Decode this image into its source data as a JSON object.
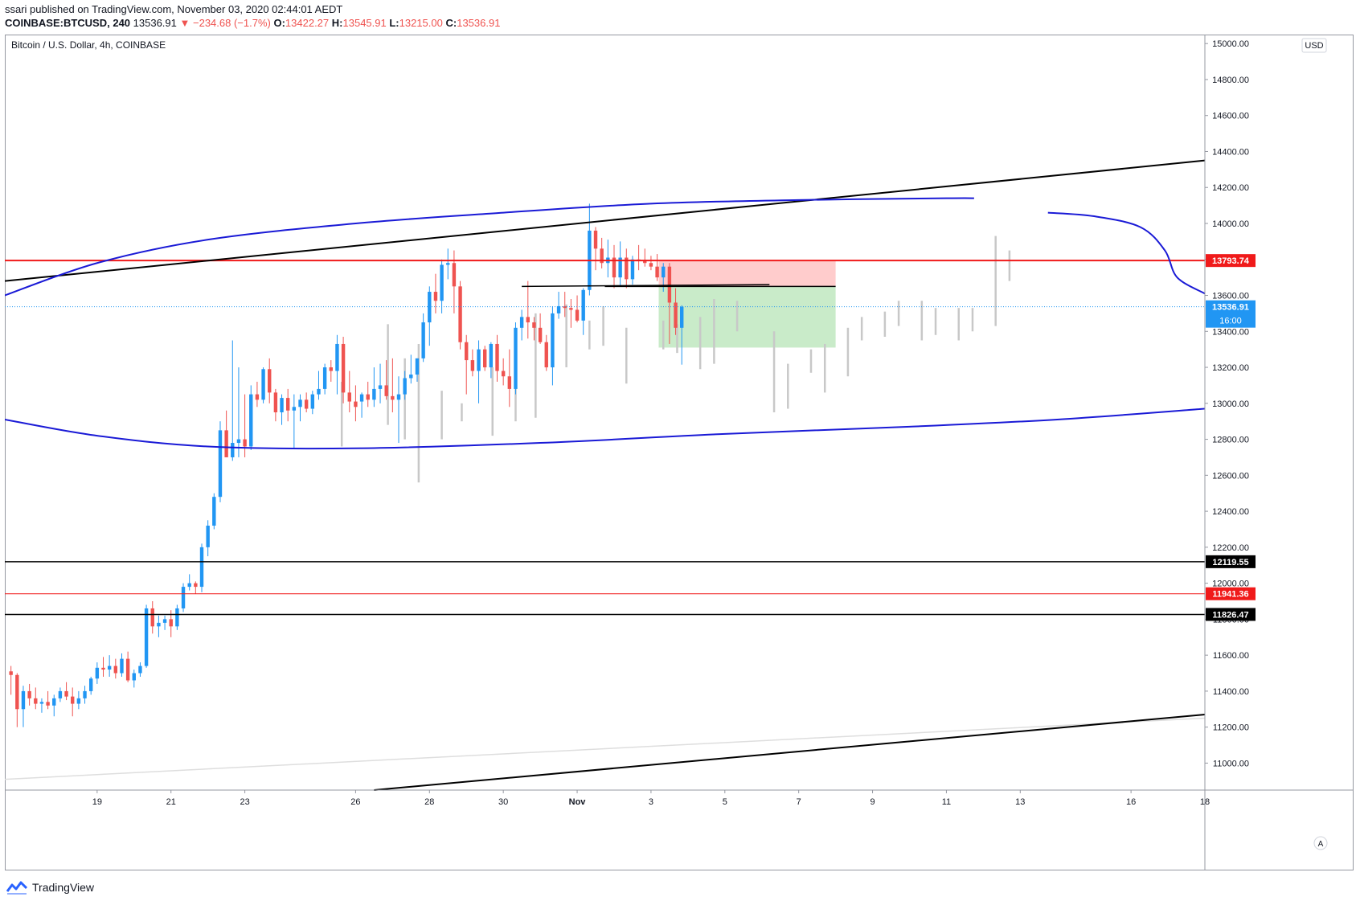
{
  "header": {
    "line1": "ssari published on TradingView.com, November 03, 2020 02:44:01 AEDT",
    "symbol": "COINBASE:BTCUSD, 240",
    "last": "13536.91",
    "change": "▼ −234.68 (−1.7%)",
    "o_label": "O:",
    "o_value": "13422.27",
    "h_label": "H:",
    "h_value": "13545.91",
    "l_label": "L:",
    "l_value": "13215.00",
    "c_label": "C:",
    "c_value": "13536.91"
  },
  "footer": {
    "brand": "TradingView"
  },
  "colors": {
    "up": "#2196f3",
    "down": "#ef5350",
    "projection": "#c8c8c8",
    "curve": "#1a1ad6",
    "trend": "#000000",
    "resistance": "#f01a1a",
    "stop_zone": "#ffcccc",
    "target_zone": "#c9ebc9"
  },
  "chart_data": {
    "type": "candlestick",
    "title": "Bitcoin / U.S. Dollar, 4h, COINBASE",
    "currency": "USD",
    "ylim": [
      10850,
      15050
    ],
    "y_ticks": [
      11000,
      11200,
      11400,
      11600,
      11800,
      12000,
      12200,
      12400,
      12600,
      12800,
      13000,
      13200,
      13400,
      13600,
      13800,
      14000,
      14200,
      14400,
      14600,
      14800,
      15000
    ],
    "x_range": [
      "2020-10-16T12:00",
      "2020-11-18T00:00"
    ],
    "x_ticks": [
      {
        "date": "2020-10-19",
        "label": "19"
      },
      {
        "date": "2020-10-21",
        "label": "21"
      },
      {
        "date": "2020-10-23",
        "label": "23"
      },
      {
        "date": "2020-10-26",
        "label": "26"
      },
      {
        "date": "2020-10-28",
        "label": "28"
      },
      {
        "date": "2020-10-30",
        "label": "30"
      },
      {
        "date": "2020-11-01",
        "label": "Nov"
      },
      {
        "date": "2020-11-03",
        "label": "3"
      },
      {
        "date": "2020-11-05",
        "label": "5"
      },
      {
        "date": "2020-11-07",
        "label": "7"
      },
      {
        "date": "2020-11-09",
        "label": "9"
      },
      {
        "date": "2020-11-11",
        "label": "11"
      },
      {
        "date": "2020-11-13",
        "label": "13"
      },
      {
        "date": "2020-11-16",
        "label": "16"
      },
      {
        "date": "2020-11-18",
        "label": "18"
      }
    ],
    "candles_start": "2020-10-16T16:00",
    "candle_interval": "4h",
    "candles": [
      [
        11510,
        11540,
        11380,
        11490
      ],
      [
        11490,
        11500,
        11200,
        11300
      ],
      [
        11300,
        11430,
        11200,
        11400
      ],
      [
        11400,
        11440,
        11320,
        11360
      ],
      [
        11360,
        11420,
        11300,
        11330
      ],
      [
        11330,
        11360,
        11280,
        11340
      ],
      [
        11340,
        11400,
        11300,
        11320
      ],
      [
        11320,
        11380,
        11260,
        11360
      ],
      [
        11360,
        11420,
        11340,
        11400
      ],
      [
        11400,
        11450,
        11350,
        11370
      ],
      [
        11370,
        11420,
        11260,
        11330
      ],
      [
        11330,
        11400,
        11300,
        11360
      ],
      [
        11360,
        11430,
        11330,
        11400
      ],
      [
        11400,
        11480,
        11380,
        11470
      ],
      [
        11470,
        11560,
        11440,
        11530
      ],
      [
        11530,
        11590,
        11480,
        11520
      ],
      [
        11520,
        11600,
        11480,
        11540
      ],
      [
        11540,
        11580,
        11470,
        11500
      ],
      [
        11500,
        11610,
        11480,
        11580
      ],
      [
        11580,
        11620,
        11450,
        11460
      ],
      [
        11460,
        11520,
        11420,
        11500
      ],
      [
        11500,
        11560,
        11480,
        11540
      ],
      [
        11540,
        11880,
        11530,
        11860
      ],
      [
        11860,
        11900,
        11720,
        11760
      ],
      [
        11760,
        11820,
        11700,
        11780
      ],
      [
        11780,
        11820,
        11740,
        11800
      ],
      [
        11800,
        11850,
        11700,
        11760
      ],
      [
        11760,
        11880,
        11740,
        11860
      ],
      [
        11860,
        12000,
        11840,
        11980
      ],
      [
        11980,
        12050,
        11960,
        12000
      ],
      [
        12000,
        12010,
        11940,
        11980
      ],
      [
        11980,
        12220,
        11950,
        12200
      ],
      [
        12200,
        12350,
        12150,
        12320
      ],
      [
        12320,
        12500,
        12300,
        12480
      ],
      [
        12480,
        12900,
        12450,
        12850
      ],
      [
        12850,
        12960,
        12700,
        12700
      ],
      [
        12700,
        13350,
        12680,
        12780
      ],
      [
        12780,
        13200,
        12700,
        12800
      ],
      [
        12800,
        13050,
        12700,
        12760
      ],
      [
        12760,
        13100,
        12740,
        13050
      ],
      [
        13050,
        13120,
        12980,
        13020
      ],
      [
        13020,
        13200,
        13000,
        13190
      ],
      [
        13190,
        13250,
        13000,
        13060
      ],
      [
        13060,
        13080,
        12900,
        12950
      ],
      [
        12950,
        13050,
        12880,
        13030
      ],
      [
        13030,
        13080,
        12900,
        12960
      ],
      [
        12960,
        13050,
        12750,
        12980
      ],
      [
        12980,
        13050,
        12900,
        13020
      ],
      [
        13020,
        13060,
        12950,
        12970
      ],
      [
        12970,
        13070,
        12940,
        13050
      ],
      [
        13050,
        13180,
        13020,
        13080
      ],
      [
        13080,
        13220,
        13050,
        13200
      ],
      [
        13200,
        13240,
        13120,
        13180
      ],
      [
        13180,
        13380,
        13050,
        13330
      ],
      [
        13330,
        13370,
        13000,
        13060
      ],
      [
        13060,
        13180,
        12950,
        13010
      ],
      [
        13010,
        13100,
        12900,
        12980
      ],
      [
        13010,
        13060,
        12920,
        13050
      ],
      [
        13050,
        13120,
        12980,
        13020
      ],
      [
        13020,
        13200,
        12980,
        13080
      ],
      [
        13080,
        13220,
        13000,
        13100
      ],
      [
        13100,
        13240,
        13020,
        13040
      ],
      [
        13040,
        13250,
        12950,
        13020
      ],
      [
        13020,
        13150,
        12780,
        13050
      ],
      [
        13050,
        13180,
        13020,
        13140
      ],
      [
        13140,
        13270,
        13110,
        13160
      ],
      [
        13160,
        13250,
        13120,
        13250
      ],
      [
        13250,
        13500,
        13230,
        13450
      ],
      [
        13450,
        13650,
        13320,
        13620
      ],
      [
        13620,
        13720,
        13500,
        13570
      ],
      [
        13570,
        13800,
        13500,
        13770
      ],
      [
        13770,
        13860,
        13690,
        13780
      ],
      [
        13780,
        13850,
        13500,
        13650
      ],
      [
        13650,
        13680,
        13300,
        13340
      ],
      [
        13340,
        13380,
        13050,
        13240
      ],
      [
        13240,
        13300,
        13150,
        13180
      ],
      [
        13180,
        13350,
        13000,
        13300
      ],
      [
        13300,
        13320,
        13180,
        13200
      ],
      [
        13200,
        13340,
        13140,
        13330
      ],
      [
        13330,
        13380,
        13120,
        13180
      ],
      [
        13180,
        13250,
        13100,
        13150
      ],
      [
        13150,
        13300,
        12980,
        13080
      ],
      [
        13080,
        13450,
        13050,
        13420
      ],
      [
        13420,
        13520,
        13350,
        13480
      ],
      [
        13480,
        13680,
        13360,
        13450
      ],
      [
        13450,
        13480,
        13350,
        13420
      ],
      [
        13420,
        13500,
        13330,
        13340
      ],
      [
        13340,
        13380,
        13180,
        13200
      ],
      [
        13200,
        13540,
        13100,
        13500
      ],
      [
        13500,
        13620,
        13470,
        13540
      ],
      [
        13540,
        13620,
        13480,
        13530
      ],
      [
        13530,
        13580,
        13420,
        13520
      ],
      [
        13520,
        13600,
        13450,
        13460
      ],
      [
        13460,
        13640,
        13380,
        13630
      ],
      [
        13630,
        14110,
        13600,
        13960
      ],
      [
        13960,
        13980,
        13740,
        13860
      ],
      [
        13860,
        13920,
        13750,
        13780
      ],
      [
        13780,
        13910,
        13700,
        13810
      ],
      [
        13810,
        13880,
        13640,
        13700
      ],
      [
        13700,
        13900,
        13650,
        13810
      ],
      [
        13810,
        13860,
        13640,
        13690
      ],
      [
        13690,
        13820,
        13660,
        13800
      ],
      [
        13800,
        13880,
        13740,
        13790
      ],
      [
        13790,
        13860,
        13760,
        13780
      ],
      [
        13780,
        13820,
        13740,
        13760
      ],
      [
        13760,
        13830,
        13680,
        13700
      ],
      [
        13700,
        13780,
        13620,
        13760
      ],
      [
        13760,
        13780,
        13330,
        13560
      ],
      [
        13560,
        13640,
        13380,
        13420
      ],
      [
        13420,
        13545,
        13215,
        13537
      ]
    ],
    "projection_bars": [
      [
        "2020-10-25T15:00",
        12760,
        13120
      ],
      [
        "2020-10-26T21:00",
        12880,
        13440
      ],
      [
        "2020-10-27T08:00",
        12800,
        13250
      ],
      [
        "2020-10-27T17:00",
        12560,
        13330
      ],
      [
        "2020-10-28T08:00",
        12800,
        13070
      ],
      [
        "2020-10-28T21:00",
        12900,
        13000
      ],
      [
        "2020-10-29T17:00",
        12820,
        13200
      ],
      [
        "2020-10-30T08:00",
        12900,
        13100
      ],
      [
        "2020-10-30T21:00",
        12920,
        13500
      ],
      [
        "2020-10-31T17:00",
        13200,
        13550
      ],
      [
        "2020-11-01T08:00",
        13300,
        13460
      ],
      [
        "2020-11-01T17:00",
        13320,
        13540
      ],
      [
        "2020-11-02T08:00",
        13110,
        13420
      ],
      [
        "2020-11-03T08:00",
        13300,
        13460
      ],
      [
        "2020-11-03T17:00",
        13280,
        13440
      ],
      [
        "2020-11-04T08:00",
        13190,
        13480
      ],
      [
        "2020-11-04T17:00",
        13220,
        13580
      ],
      [
        "2020-11-05T08:00",
        13400,
        13570
      ],
      [
        "2020-11-06T08:00",
        12950,
        13400
      ],
      [
        "2020-11-06T17:00",
        12970,
        13220
      ],
      [
        "2020-11-07T08:00",
        13170,
        13300
      ],
      [
        "2020-11-07T17:00",
        13060,
        13330
      ],
      [
        "2020-11-08T08:00",
        13150,
        13420
      ],
      [
        "2020-11-08T17:00",
        13350,
        13480
      ],
      [
        "2020-11-09T08:00",
        13370,
        13510
      ],
      [
        "2020-11-09T17:00",
        13430,
        13570
      ],
      [
        "2020-11-10T08:00",
        13350,
        13570
      ],
      [
        "2020-11-10T17:00",
        13380,
        13530
      ],
      [
        "2020-11-11T08:00",
        13350,
        13530
      ],
      [
        "2020-11-11T17:00",
        13400,
        13530
      ],
      [
        "2020-11-12T08:00",
        13430,
        13930
      ],
      [
        "2020-11-12T17:00",
        13680,
        13850
      ]
    ],
    "horizontal_levels": [
      {
        "value": 13793.74,
        "label": "13793.74",
        "color": "#f01a1a"
      },
      {
        "value": 12119.55,
        "label": "12119.55",
        "color": "#000000"
      },
      {
        "value": 11941.36,
        "label": "11941.36",
        "color": "#f01a1a"
      },
      {
        "value": 11826.47,
        "label": "11826.47",
        "color": "#000000"
      }
    ],
    "last_price": {
      "value": 13536.91,
      "label": "13536.91",
      "countdown": "16:00"
    },
    "trend_lines": [
      {
        "from": [
          "2020-10-16T12:00",
          13680
        ],
        "to": [
          "2020-11-18T00:00",
          14350
        ]
      },
      {
        "from": [
          "2020-10-26T12:00",
          10850
        ],
        "to": [
          "2020-11-18T00:00",
          11270
        ]
      },
      {
        "from": [
          "2020-10-30T12:00",
          13650
        ],
        "to": [
          "2020-11-06T05:00",
          13660
        ]
      },
      {
        "from": [
          "2020-11-01T18:00",
          13650
        ],
        "to": [
          "2020-11-08T00:00",
          13650
        ]
      }
    ],
    "faint_line": {
      "from": [
        "2020-10-16T12:00",
        10910
      ],
      "to": [
        "2020-11-18T00:00",
        11250
      ]
    },
    "position_zone": {
      "start": "2020-11-03T05:00",
      "end": "2020-11-08T00:00",
      "stop_top": 13790,
      "entry": 13650,
      "target": 13310
    },
    "curves": [
      {
        "points": [
          [
            "2020-10-16T12:00",
            13600
          ],
          [
            "2020-10-19T00:00",
            13780
          ],
          [
            "2020-10-22T00:00",
            13910
          ],
          [
            "2020-10-26T00:00",
            14000
          ],
          [
            "2020-10-30T00:00",
            14060
          ],
          [
            "2020-11-03T00:00",
            14110
          ],
          [
            "2020-11-07T00:00",
            14130
          ],
          [
            "2020-11-11T00:00",
            14140
          ],
          [
            "2020-11-11T18:00",
            14140
          ]
        ]
      },
      {
        "points": [
          [
            "2020-11-13T18:00",
            14060
          ],
          [
            "2020-11-15T00:00",
            14040
          ],
          [
            "2020-11-16T06:00",
            13980
          ],
          [
            "2020-11-16T22:00",
            13850
          ],
          [
            "2020-11-17T06:00",
            13700
          ],
          [
            "2020-11-18T00:00",
            13610
          ]
        ]
      },
      {
        "points": [
          [
            "2020-10-16T12:00",
            12910
          ],
          [
            "2020-10-19T00:00",
            12820
          ],
          [
            "2020-10-22T00:00",
            12760
          ],
          [
            "2020-10-26T00:00",
            12750
          ],
          [
            "2020-10-31T00:00",
            12780
          ],
          [
            "2020-11-05T00:00",
            12830
          ],
          [
            "2020-11-10T00:00",
            12870
          ],
          [
            "2020-11-14T00:00",
            12910
          ],
          [
            "2020-11-18T00:00",
            12970
          ]
        ]
      }
    ]
  }
}
